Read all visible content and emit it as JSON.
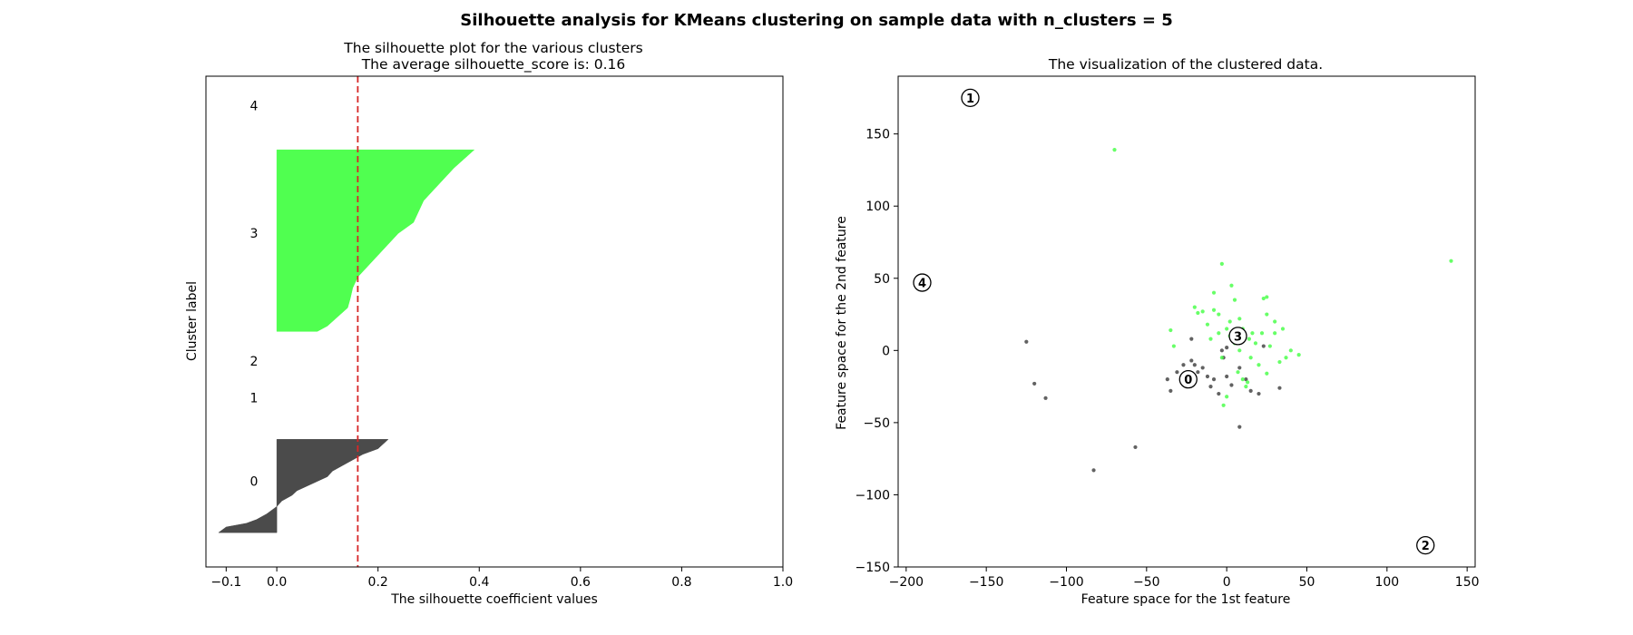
{
  "figure": {
    "suptitle": "Silhouette analysis for KMeans clustering on sample data with n_clusters = 5"
  },
  "chart_data": [
    {
      "type": "area",
      "title": "The silhouette plot for the various clusters",
      "subtitle": "The average silhouette_score is: 0.16",
      "xlabel": "The silhouette coefficient values",
      "ylabel": "Cluster label",
      "xlim": [
        -0.14,
        1.0
      ],
      "ylim": [
        0,
        1
      ],
      "xticks": [
        -0.1,
        0.0,
        0.2,
        0.4,
        0.6,
        0.8,
        1.0
      ],
      "xtick_labels": [
        "−0.1",
        "0.0",
        "0.2",
        "0.4",
        "0.6",
        "0.8",
        "1.0"
      ],
      "average_score": 0.16,
      "average_line_color": "#d62728",
      "cluster_labels": [
        {
          "label": "4",
          "y": 0.94
        },
        {
          "label": "3",
          "y": 0.68
        },
        {
          "label": "2",
          "y": 0.42
        },
        {
          "label": "1",
          "y": 0.345
        },
        {
          "label": "0",
          "y": 0.175
        }
      ],
      "clusters": [
        {
          "label": "0",
          "color": "#474747",
          "y_range": [
            0.07,
            0.26
          ],
          "profile": [
            [
              0.0,
              -0.115
            ],
            [
              0.06,
              -0.1
            ],
            [
              0.1,
              -0.06
            ],
            [
              0.14,
              -0.04
            ],
            [
              0.2,
              -0.02
            ],
            [
              0.28,
              0.0
            ],
            [
              0.34,
              0.01
            ],
            [
              0.4,
              0.03
            ],
            [
              0.45,
              0.04
            ],
            [
              0.5,
              0.06
            ],
            [
              0.55,
              0.08
            ],
            [
              0.6,
              0.1
            ],
            [
              0.66,
              0.11
            ],
            [
              0.72,
              0.13
            ],
            [
              0.78,
              0.15
            ],
            [
              0.84,
              0.17
            ],
            [
              0.9,
              0.2
            ],
            [
              0.95,
              0.21
            ],
            [
              1.0,
              0.22
            ]
          ]
        },
        {
          "label": "3",
          "color": "#4cff4c",
          "y_range": [
            0.48,
            0.85
          ],
          "profile": [
            [
              0.0,
              0.08
            ],
            [
              0.03,
              0.1
            ],
            [
              0.08,
              0.12
            ],
            [
              0.13,
              0.14
            ],
            [
              0.18,
              0.145
            ],
            [
              0.24,
              0.15
            ],
            [
              0.3,
              0.16
            ],
            [
              0.36,
              0.18
            ],
            [
              0.42,
              0.2
            ],
            [
              0.48,
              0.22
            ],
            [
              0.54,
              0.24
            ],
            [
              0.6,
              0.27
            ],
            [
              0.66,
              0.28
            ],
            [
              0.72,
              0.29
            ],
            [
              0.78,
              0.31
            ],
            [
              0.84,
              0.33
            ],
            [
              0.9,
              0.35
            ],
            [
              0.95,
              0.37
            ],
            [
              1.0,
              0.39
            ]
          ]
        }
      ]
    },
    {
      "type": "scatter",
      "title": "The visualization of the clustered data.",
      "xlabel": "Feature space for the 1st feature",
      "ylabel": "Feature space for the 2nd feature",
      "xlim": [
        -205,
        155
      ],
      "ylim": [
        -150,
        190
      ],
      "xticks": [
        -200,
        -150,
        -100,
        -50,
        0,
        50,
        100,
        150
      ],
      "xtick_labels": [
        "−200",
        "−150",
        "−100",
        "−50",
        "0",
        "50",
        "100",
        "150"
      ],
      "yticks": [
        -150,
        -100,
        -50,
        0,
        50,
        100,
        150
      ],
      "ytick_labels": [
        "−150",
        "−100",
        "−50",
        "0",
        "50",
        "100",
        "150"
      ],
      "series": [
        {
          "name": "0",
          "color": "#474747",
          "points": [
            [
              -125,
              6
            ],
            [
              -120,
              -23
            ],
            [
              -113,
              -33
            ],
            [
              -83,
              -83
            ],
            [
              -57,
              -67
            ],
            [
              -37,
              -20
            ],
            [
              -35,
              -28
            ],
            [
              -31,
              -15
            ],
            [
              -27,
              -10
            ],
            [
              -25,
              -25
            ],
            [
              -22,
              8
            ],
            [
              -22,
              -7
            ],
            [
              -20,
              -10
            ],
            [
              -18,
              -15
            ],
            [
              -15,
              -12
            ],
            [
              -12,
              -18
            ],
            [
              -10,
              -25
            ],
            [
              -8,
              -20
            ],
            [
              -5,
              -30
            ],
            [
              -3,
              0
            ],
            [
              -2,
              -5
            ],
            [
              0,
              2
            ],
            [
              0,
              -18
            ],
            [
              3,
              -24
            ],
            [
              8,
              -12
            ],
            [
              8,
              -53
            ],
            [
              12,
              -20
            ],
            [
              15,
              -28
            ],
            [
              20,
              -30
            ],
            [
              23,
              3
            ],
            [
              33,
              -26
            ]
          ]
        },
        {
          "name": "3",
          "color": "#4cff4c",
          "points": [
            [
              -70,
              139
            ],
            [
              -35,
              14
            ],
            [
              -33,
              3
            ],
            [
              -20,
              30
            ],
            [
              -18,
              26
            ],
            [
              -15,
              27
            ],
            [
              -12,
              18
            ],
            [
              -10,
              8
            ],
            [
              -8,
              40
            ],
            [
              -8,
              28
            ],
            [
              -5,
              25
            ],
            [
              -5,
              12
            ],
            [
              -3,
              60
            ],
            [
              -3,
              -5
            ],
            [
              -2,
              -38
            ],
            [
              0,
              -32
            ],
            [
              0,
              15
            ],
            [
              2,
              10
            ],
            [
              2,
              20
            ],
            [
              3,
              45
            ],
            [
              5,
              35
            ],
            [
              5,
              5
            ],
            [
              7,
              -15
            ],
            [
              8,
              22
            ],
            [
              8,
              0
            ],
            [
              10,
              15
            ],
            [
              10,
              -20
            ],
            [
              12,
              -25
            ],
            [
              13,
              -22
            ],
            [
              14,
              8
            ],
            [
              15,
              -5
            ],
            [
              16,
              12
            ],
            [
              18,
              5
            ],
            [
              20,
              -10
            ],
            [
              22,
              12
            ],
            [
              23,
              36
            ],
            [
              25,
              37
            ],
            [
              25,
              25
            ],
            [
              25,
              -16
            ],
            [
              27,
              3
            ],
            [
              30,
              12
            ],
            [
              30,
              20
            ],
            [
              33,
              -8
            ],
            [
              35,
              15
            ],
            [
              37,
              -5
            ],
            [
              40,
              0
            ],
            [
              45,
              -3
            ],
            [
              140,
              62
            ]
          ]
        }
      ],
      "centers": [
        {
          "label": "0",
          "x": -24,
          "y": -20
        },
        {
          "label": "1",
          "x": -160,
          "y": 175
        },
        {
          "label": "2",
          "x": 124,
          "y": -135
        },
        {
          "label": "3",
          "x": 7,
          "y": 10
        },
        {
          "label": "4",
          "x": -190,
          "y": 47
        }
      ]
    }
  ]
}
